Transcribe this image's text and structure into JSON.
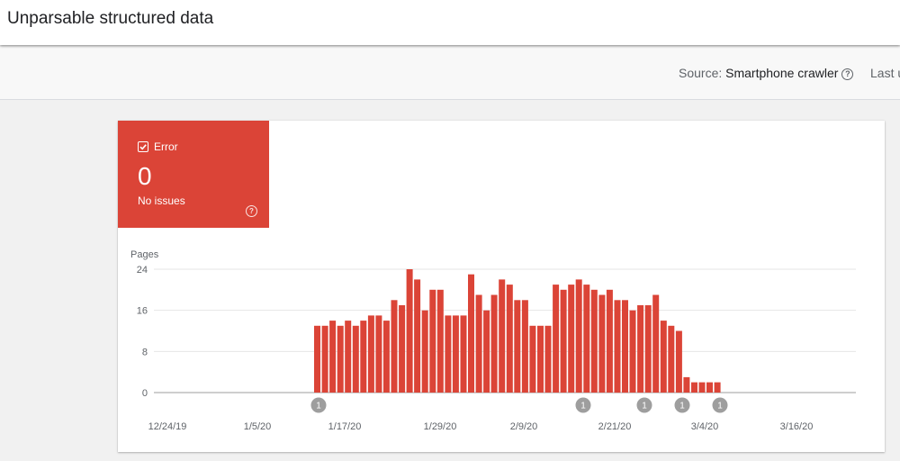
{
  "header": {
    "title": "Unparsable structured data"
  },
  "toolbar": {
    "source_label": "Source:",
    "source_value": "Smartphone crawler",
    "help_glyph": "?",
    "last_updated_partial": "Last u"
  },
  "summary": {
    "status_label": "Error",
    "count": "0",
    "description": "No issues",
    "help_glyph": "?",
    "color": "#db4437"
  },
  "chart_data": {
    "type": "bar",
    "ylabel": "Pages",
    "ylim": [
      0,
      24
    ],
    "yticks": [
      0,
      8,
      16,
      24
    ],
    "grid": true,
    "bar_color": "#db4437",
    "x_tick_labels": [
      "12/24/19",
      "1/5/20",
      "1/17/20",
      "1/29/20",
      "2/9/20",
      "2/21/20",
      "3/4/20",
      "3/16/20"
    ],
    "series": [
      {
        "values": [
          13,
          13,
          14,
          13,
          14,
          13,
          14,
          15,
          15,
          14,
          18,
          17,
          24,
          22,
          16,
          20,
          20,
          15,
          15,
          15,
          23,
          19,
          16,
          19,
          22,
          21,
          18,
          18,
          13,
          13,
          13,
          21,
          20,
          21,
          22,
          21,
          20,
          19,
          20,
          18,
          18,
          16,
          17,
          17,
          19,
          14,
          13,
          12,
          3,
          2,
          2,
          2,
          2
        ]
      }
    ],
    "annotations": [
      {
        "label": "1"
      },
      {
        "label": "1"
      },
      {
        "label": "1"
      },
      {
        "label": "1"
      },
      {
        "label": "1"
      }
    ]
  }
}
